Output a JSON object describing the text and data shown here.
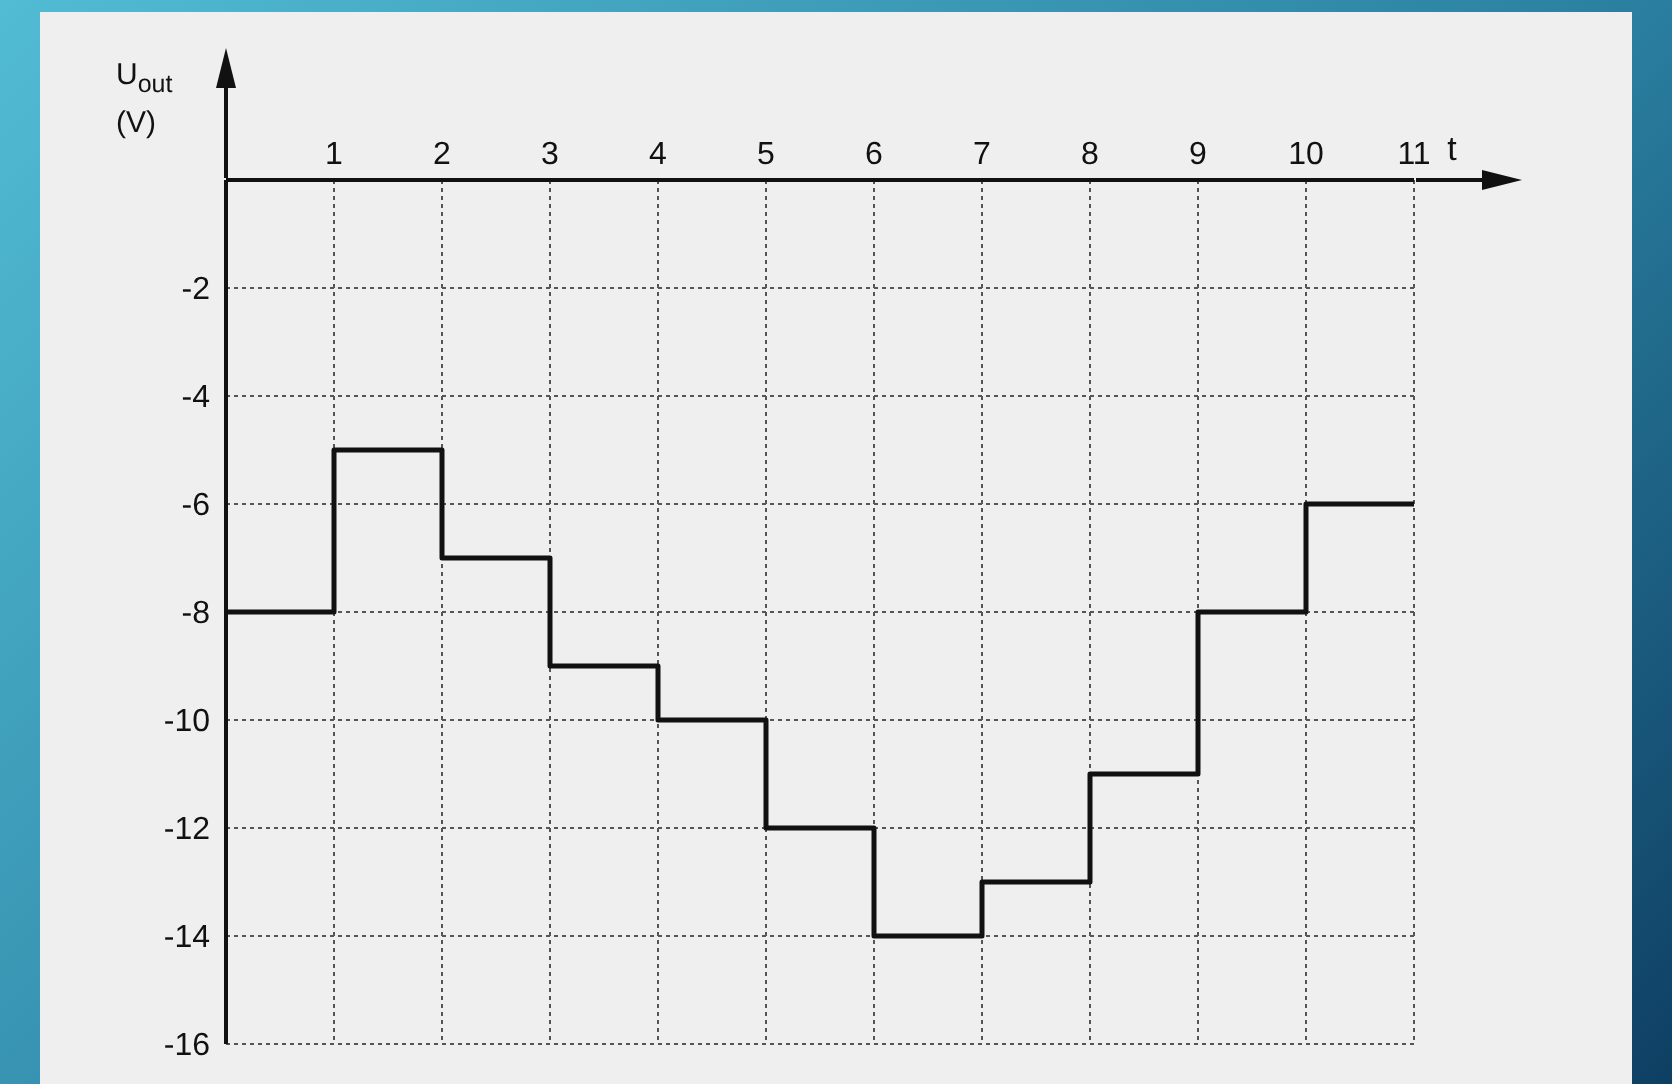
{
  "chart_data": {
    "type": "step",
    "xlabel": "t",
    "ylabel": "U$_{out}$ (V)",
    "x": [
      0,
      1,
      2,
      3,
      4,
      5,
      6,
      7,
      8,
      9,
      10,
      11
    ],
    "series": [
      {
        "color": "#111111",
        "values": [
          -8,
          -5,
          -7,
          -9,
          -10,
          -12,
          -14,
          -13,
          -11,
          -8,
          -6,
          -6
        ]
      }
    ],
    "xlim": [
      0,
      11
    ],
    "xticks": [
      1,
      2,
      3,
      4,
      5,
      6,
      7,
      8,
      9,
      10,
      11
    ],
    "ylim": [
      -16,
      0
    ],
    "yticks": [
      -16,
      -14,
      -12,
      -10,
      -8,
      -6,
      -4,
      -2
    ],
    "grid": true
  }
}
